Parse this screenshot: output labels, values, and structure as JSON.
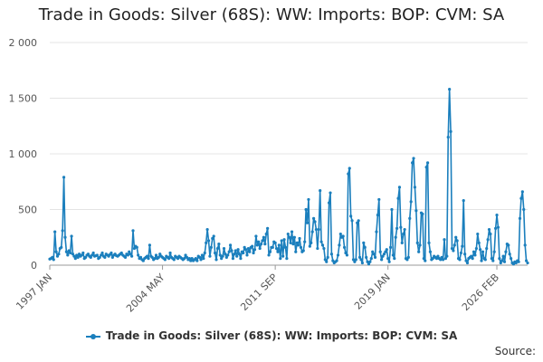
{
  "chart_data": {
    "type": "line",
    "title": "Trade in Goods: Silver (68S): WW: Imports: BOP: CVM: SA",
    "xlabel": "",
    "ylabel": "",
    "ylim": [
      0,
      2000
    ],
    "y_ticks": [
      0,
      500,
      1000,
      1500,
      2000
    ],
    "y_tick_labels": [
      "0",
      "500",
      "1 000",
      "1 500",
      "2 000"
    ],
    "x_ticks": [
      {
        "index": 0,
        "label": "1997 JAN"
      },
      {
        "index": 88,
        "label": "2004 MAY"
      },
      {
        "index": 176,
        "label": "2011 SEP"
      },
      {
        "index": 264,
        "label": "2019 JAN"
      },
      {
        "index": 349,
        "label": "2026 FEB"
      }
    ],
    "colors": {
      "series": "#1b7fbd",
      "grid": "#e4e4e4"
    },
    "series": [
      {
        "name": "Trade in Goods: Silver (68S): WW: Imports: BOP: CVM: SA",
        "values": [
          55,
          60,
          70,
          50,
          300,
          120,
          80,
          100,
          150,
          160,
          310,
          790,
          250,
          120,
          90,
          130,
          110,
          260,
          100,
          80,
          60,
          90,
          70,
          100,
          80,
          90,
          110,
          60,
          70,
          90,
          100,
          80,
          70,
          90,
          110,
          80,
          85,
          90,
          60,
          70,
          90,
          110,
          80,
          70,
          100,
          90,
          80,
          95,
          110,
          70,
          90,
          100,
          85,
          80,
          90,
          100,
          110,
          90,
          80,
          70,
          100,
          90,
          120,
          100,
          80,
          310,
          150,
          170,
          160,
          90,
          60,
          70,
          50,
          40,
          60,
          70,
          80,
          60,
          180,
          80,
          70,
          50,
          60,
          90,
          60,
          70,
          100,
          80,
          70,
          60,
          50,
          80,
          70,
          60,
          110,
          70,
          60,
          50,
          80,
          70,
          60,
          80,
          70,
          60,
          50,
          60,
          90,
          70,
          50,
          60,
          40,
          60,
          40,
          50,
          60,
          40,
          80,
          70,
          50,
          90,
          60,
          110,
          200,
          320,
          220,
          80,
          160,
          240,
          260,
          110,
          50,
          150,
          190,
          90,
          60,
          80,
          150,
          100,
          70,
          90,
          120,
          180,
          130,
          60,
          100,
          130,
          80,
          140,
          100,
          60,
          120,
          110,
          160,
          140,
          90,
          150,
          120,
          160,
          170,
          110,
          140,
          260,
          180,
          210,
          150,
          190,
          220,
          250,
          190,
          280,
          330,
          90,
          120,
          160,
          160,
          210,
          200,
          150,
          120,
          180,
          60,
          220,
          80,
          230,
          160,
          60,
          280,
          250,
          200,
          300,
          190,
          250,
          120,
          200,
          180,
          240,
          160,
          120,
          130,
          210,
          500,
          380,
          590,
          170,
          200,
          300,
          420,
          390,
          320,
          150,
          320,
          670,
          210,
          180,
          150,
          50,
          30,
          70,
          560,
          650,
          100,
          40,
          20,
          30,
          40,
          90,
          180,
          280,
          250,
          260,
          160,
          110,
          90,
          820,
          870,
          440,
          400,
          50,
          30,
          50,
          380,
          400,
          70,
          50,
          20,
          200,
          160,
          70,
          30,
          10,
          30,
          60,
          120,
          100,
          70,
          300,
          450,
          590,
          120,
          50,
          80,
          100,
          120,
          140,
          60,
          30,
          160,
          500,
          90,
          60,
          250,
          330,
          600,
          700,
          340,
          200,
          280,
          320,
          60,
          50,
          70,
          420,
          570,
          920,
          960,
          700,
          490,
          200,
          120,
          180,
          470,
          460,
          60,
          40,
          880,
          920,
          200,
          120,
          50,
          60,
          80,
          70,
          60,
          80,
          60,
          50,
          70,
          50,
          230,
          60,
          80,
          1150,
          1580,
          1200,
          150,
          130,
          180,
          250,
          220,
          60,
          50,
          110,
          170,
          580,
          100,
          40,
          20,
          60,
          70,
          80,
          60,
          120,
          90,
          150,
          280,
          200,
          140,
          40,
          120,
          60,
          50,
          150,
          230,
          320,
          280,
          60,
          40,
          120,
          330,
          450,
          340,
          60,
          20,
          40,
          80,
          30,
          120,
          190,
          180,
          100,
          60,
          20,
          10,
          30,
          20,
          40,
          30,
          420,
          600,
          660,
          500,
          180,
          40,
          20
        ]
      }
    ],
    "legend_label": "Trade in Goods: Silver (68S): WW: Imports: BOP: CVM: SA",
    "legend_position": "bottom-center",
    "source_label": "Source:"
  }
}
